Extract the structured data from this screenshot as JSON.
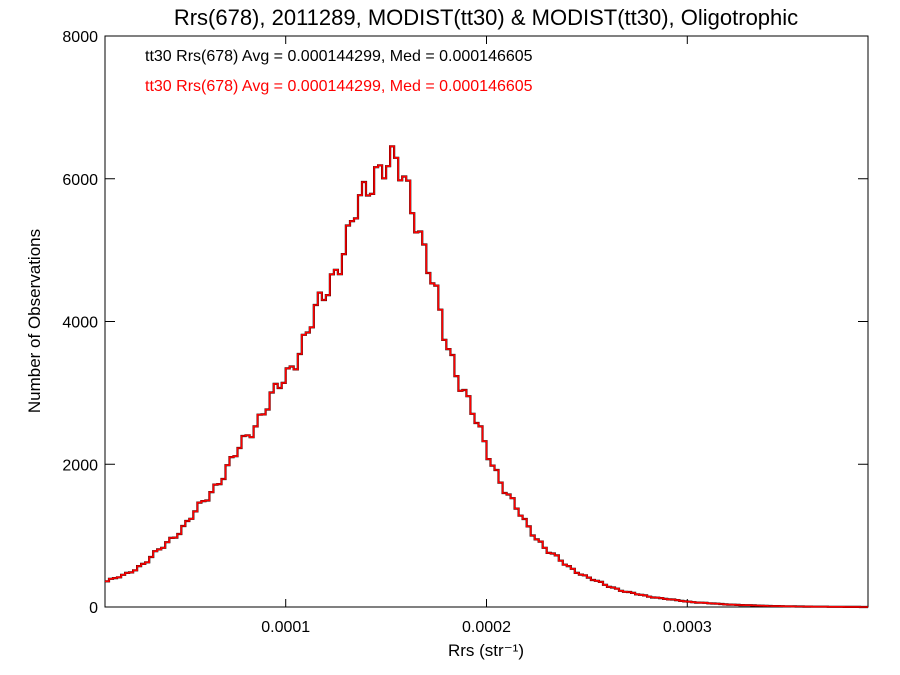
{
  "chart_data": {
    "type": "line",
    "title": "Rrs(678), 2011289, MODIST(tt30) & MODIST(tt30), Oligotrophic",
    "xlabel": "Rrs (str⁻¹)",
    "ylabel": "Number of Observations",
    "xlim": [
      1e-05,
      0.00039
    ],
    "ylim": [
      0,
      8000
    ],
    "x_ticks": [
      0.0001,
      0.0002,
      0.0003
    ],
    "x_tick_labels": [
      "0.0001",
      "0.0002",
      "0.0003"
    ],
    "y_ticks": [
      0,
      2000,
      4000,
      6000,
      8000
    ],
    "y_tick_labels": [
      "0",
      "2000",
      "4000",
      "6000",
      "8000"
    ],
    "grid": false,
    "legend_position": "top-left",
    "series": [
      {
        "name": "tt30 Rrs(678) Avg = 0.000144299, Med = 0.000146605",
        "color": "#000000",
        "x": [
          1e-05,
          2e-05,
          3e-05,
          4e-05,
          5e-05,
          6e-05,
          7e-05,
          8e-05,
          9e-05,
          0.0001,
          0.00011,
          0.00012,
          0.00013,
          0.000135,
          0.00014,
          0.000145,
          0.00015,
          0.000155,
          0.00016,
          0.000165,
          0.00017,
          0.000175,
          0.00018,
          0.00019,
          0.0002,
          0.00021,
          0.00022,
          0.00023,
          0.00024,
          0.00025,
          0.00026,
          0.00027,
          0.00028,
          0.0003,
          0.00032,
          0.00034,
          0.00036,
          0.00039
        ],
        "values": [
          350,
          450,
          620,
          870,
          1150,
          1500,
          1900,
          2350,
          2800,
          3200,
          3800,
          4400,
          5100,
          5500,
          5800,
          6150,
          6250,
          6150,
          5900,
          5500,
          4900,
          4300,
          3700,
          2950,
          2200,
          1600,
          1150,
          800,
          580,
          420,
          300,
          210,
          150,
          75,
          35,
          15,
          5,
          0
        ]
      },
      {
        "name": "tt30 Rrs(678) Avg = 0.000144299, Med = 0.000146605",
        "color": "#ff0000",
        "x": [
          1e-05,
          2e-05,
          3e-05,
          4e-05,
          5e-05,
          6e-05,
          7e-05,
          8e-05,
          9e-05,
          0.0001,
          0.00011,
          0.00012,
          0.00013,
          0.000135,
          0.00014,
          0.000145,
          0.00015,
          0.000155,
          0.00016,
          0.000165,
          0.00017,
          0.000175,
          0.00018,
          0.00019,
          0.0002,
          0.00021,
          0.00022,
          0.00023,
          0.00024,
          0.00025,
          0.00026,
          0.00027,
          0.00028,
          0.0003,
          0.00032,
          0.00034,
          0.00036,
          0.00039
        ],
        "values": [
          350,
          450,
          620,
          870,
          1150,
          1500,
          1900,
          2350,
          2800,
          3200,
          3800,
          4400,
          5100,
          5500,
          5800,
          6150,
          6250,
          6150,
          5900,
          5500,
          4900,
          4300,
          3700,
          2950,
          2200,
          1600,
          1150,
          800,
          580,
          420,
          300,
          210,
          150,
          75,
          35,
          15,
          5,
          0
        ]
      }
    ]
  }
}
